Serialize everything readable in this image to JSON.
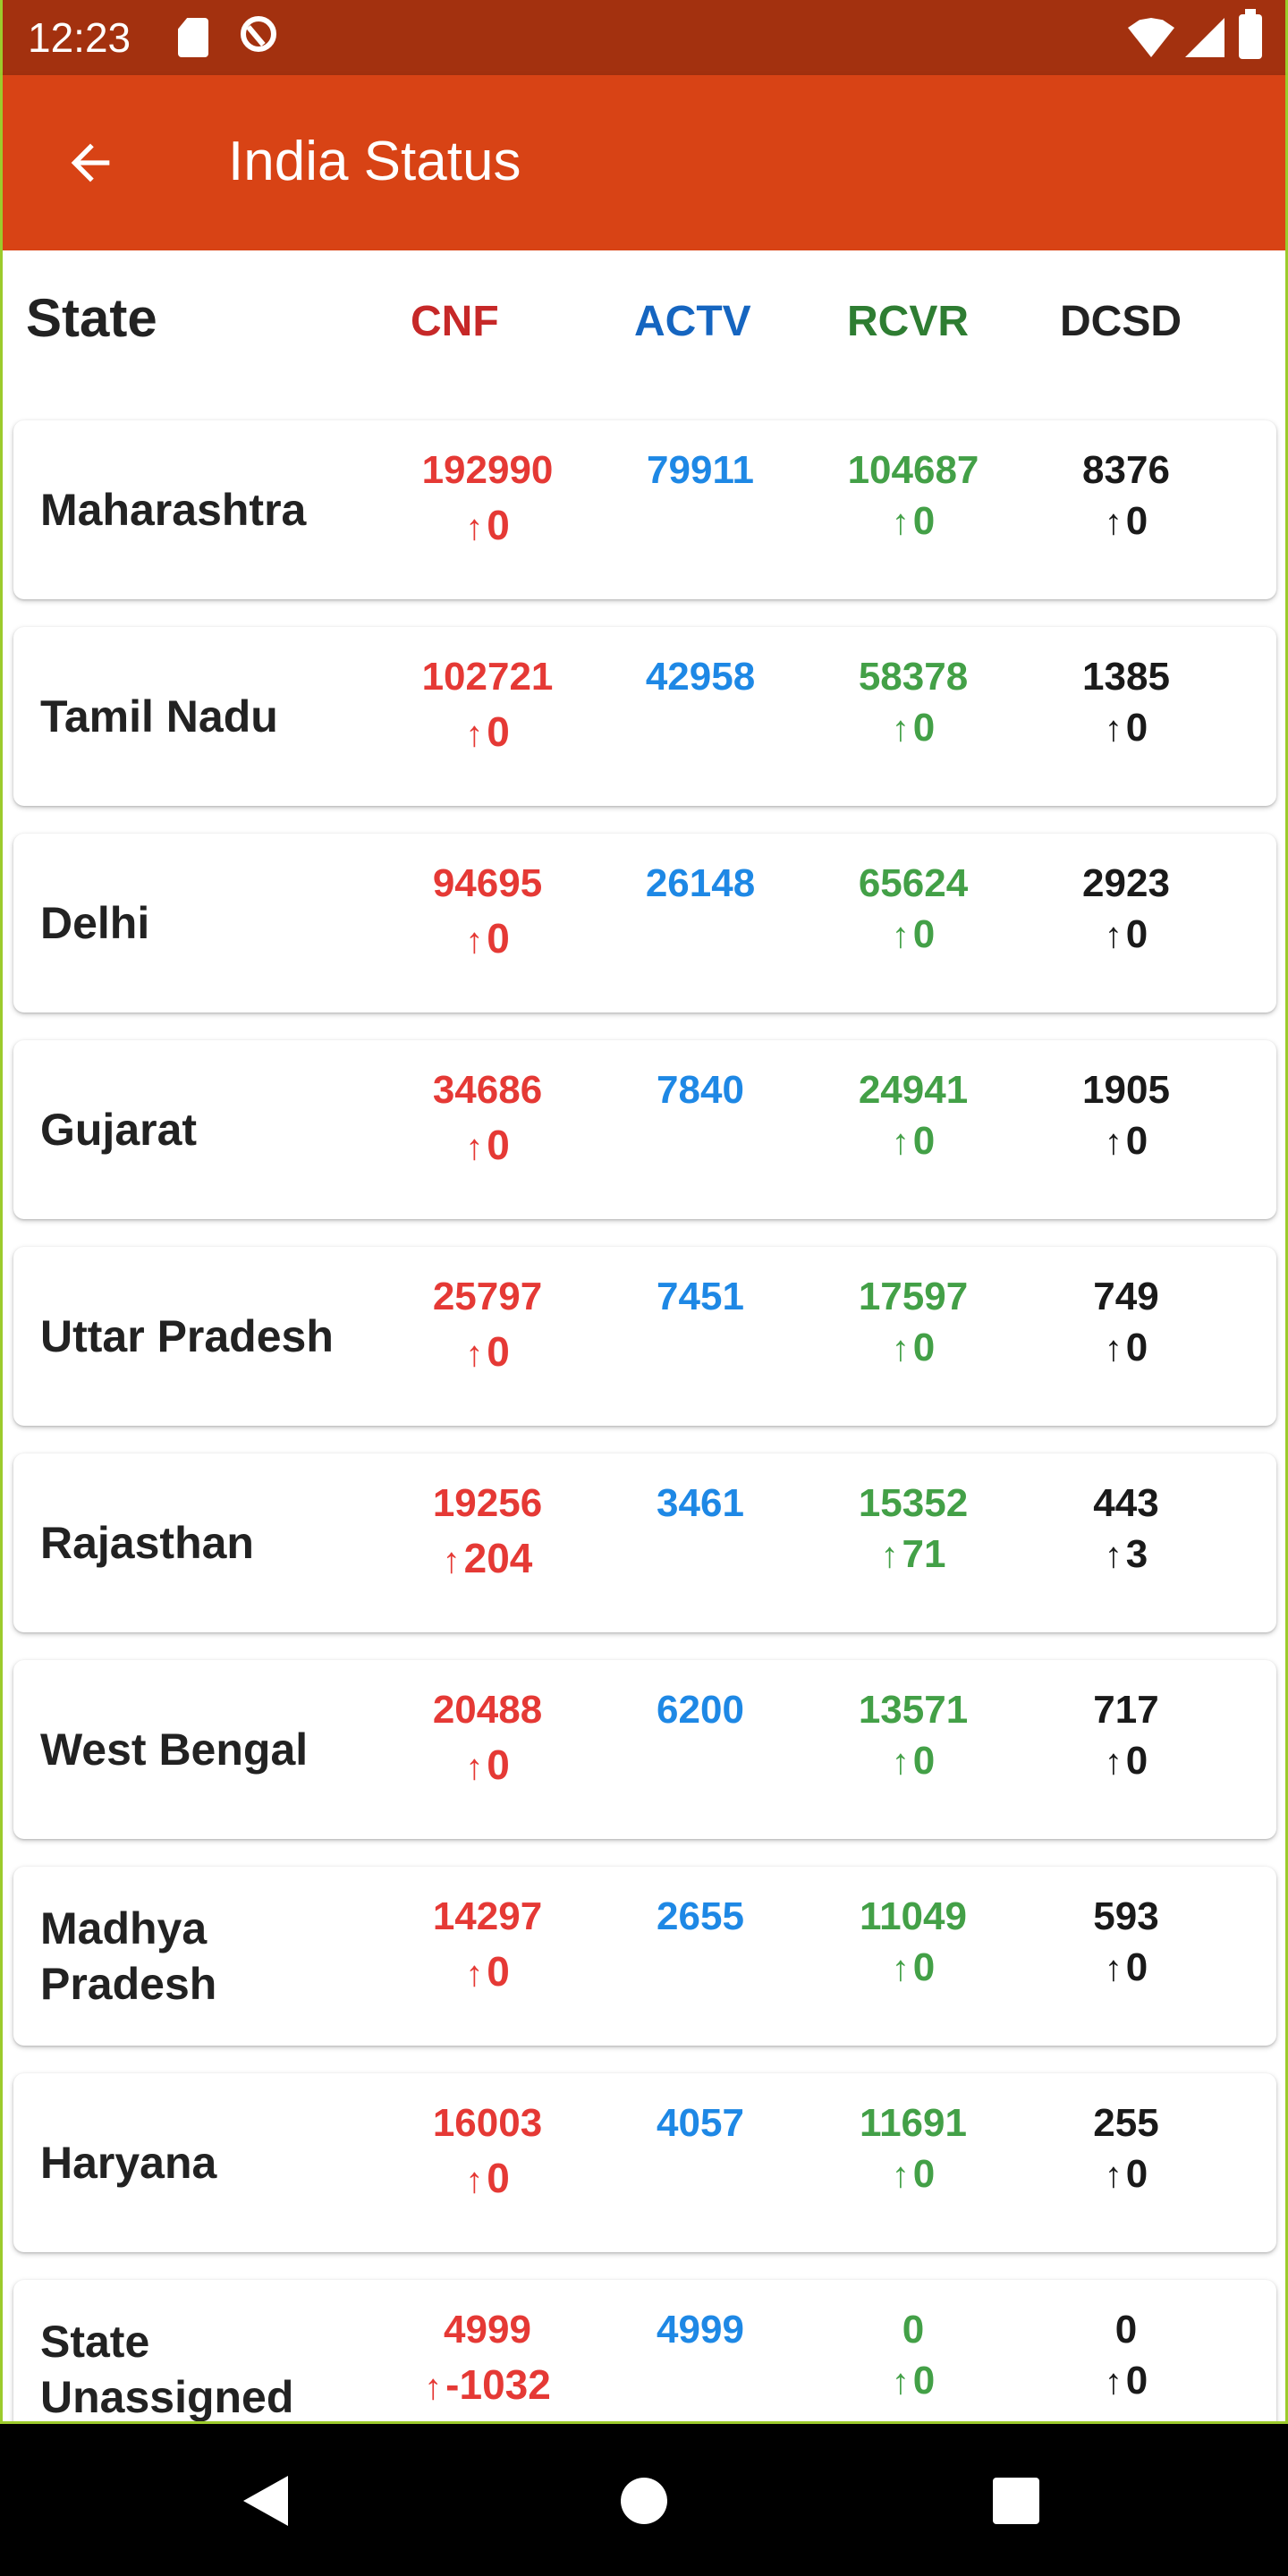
{
  "status_bar": {
    "time": "12:23",
    "icons": [
      "sd-card-icon",
      "vpn-icon",
      "wifi-icon",
      "signal-icon",
      "battery-icon"
    ]
  },
  "app_bar": {
    "title": "India Status",
    "back_icon": "arrow-left-icon"
  },
  "colors": {
    "status_bar": "#A3310F",
    "app_bar": "#D84315",
    "confirmed": "#E53935",
    "active": "#1E88E5",
    "recovered": "#43A047",
    "deceased": "#1a1a1a"
  },
  "table": {
    "headers": {
      "state": "State",
      "confirmed": "CNF",
      "active": "ACTV",
      "recovered": "RCVR",
      "deceased": "DCSD"
    },
    "rows": [
      {
        "state": "Maharashtra",
        "cnf": "192990",
        "cnf_delta": "0",
        "actv": "79911",
        "rcvr": "104687",
        "rcvr_delta": "0",
        "dcsd": "8376",
        "dcsd_delta": "0"
      },
      {
        "state": "Tamil Nadu",
        "cnf": "102721",
        "cnf_delta": "0",
        "actv": "42958",
        "rcvr": "58378",
        "rcvr_delta": "0",
        "dcsd": "1385",
        "dcsd_delta": "0"
      },
      {
        "state": "Delhi",
        "cnf": "94695",
        "cnf_delta": "0",
        "actv": "26148",
        "rcvr": "65624",
        "rcvr_delta": "0",
        "dcsd": "2923",
        "dcsd_delta": "0"
      },
      {
        "state": "Gujarat",
        "cnf": "34686",
        "cnf_delta": "0",
        "actv": "7840",
        "rcvr": "24941",
        "rcvr_delta": "0",
        "dcsd": "1905",
        "dcsd_delta": "0"
      },
      {
        "state": "Uttar Pradesh",
        "cnf": "25797",
        "cnf_delta": "0",
        "actv": "7451",
        "rcvr": "17597",
        "rcvr_delta": "0",
        "dcsd": "749",
        "dcsd_delta": "0"
      },
      {
        "state": "Rajasthan",
        "cnf": "19256",
        "cnf_delta": "204",
        "actv": "3461",
        "rcvr": "15352",
        "rcvr_delta": "71",
        "dcsd": "443",
        "dcsd_delta": "3"
      },
      {
        "state": "West Bengal",
        "cnf": "20488",
        "cnf_delta": "0",
        "actv": "6200",
        "rcvr": "13571",
        "rcvr_delta": "0",
        "dcsd": "717",
        "dcsd_delta": "0"
      },
      {
        "state": "Madhya Pradesh",
        "cnf": "14297",
        "cnf_delta": "0",
        "actv": "2655",
        "rcvr": "11049",
        "rcvr_delta": "0",
        "dcsd": "593",
        "dcsd_delta": "0"
      },
      {
        "state": "Haryana",
        "cnf": "16003",
        "cnf_delta": "0",
        "actv": "4057",
        "rcvr": "11691",
        "rcvr_delta": "0",
        "dcsd": "255",
        "dcsd_delta": "0"
      },
      {
        "state": "State Unassigned",
        "cnf": "4999",
        "cnf_delta": "-1032",
        "actv": "4999",
        "rcvr": "0",
        "rcvr_delta": "0",
        "dcsd": "0",
        "dcsd_delta": "0"
      }
    ]
  },
  "nav_bar": {
    "icons": [
      "nav-back-icon",
      "nav-home-icon",
      "nav-recents-icon"
    ]
  }
}
